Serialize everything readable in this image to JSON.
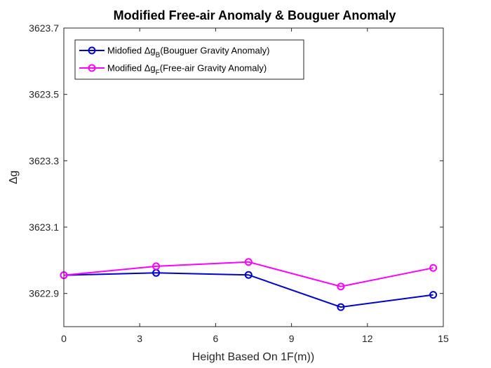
{
  "chart_data": {
    "type": "line",
    "title": "Modified Free-air Anomaly & Bouguer Anomaly",
    "xlabel": "Height Based On 1F(m))",
    "ylabel": "Δg",
    "xlim": [
      0,
      15
    ],
    "ylim": [
      3622.8,
      3623.7
    ],
    "xticks": [
      0,
      3,
      6,
      9,
      12,
      15
    ],
    "xtick_labels": [
      "0",
      "3",
      "6",
      "9",
      "12",
      "15"
    ],
    "yticks": [
      3622.9,
      3623.1,
      3623.3,
      3623.5,
      3623.7
    ],
    "ytick_labels": [
      "3622.9",
      "3623.1",
      "3623.3",
      "3623.5",
      "3623.7"
    ],
    "grid": false,
    "legend_position": "top-left",
    "series": [
      {
        "name": "Midofied Δg_B(Bouguer Gravity Anomaly)",
        "legend_prefix": "Midofied Δg",
        "legend_sub": "B",
        "legend_suffix": "(Bouguer Gravity Anomaly)",
        "color": "#0000cc",
        "x": [
          0,
          3.65,
          7.3,
          10.95,
          14.6
        ],
        "y": [
          3622.955,
          3622.962,
          3622.956,
          3622.859,
          3622.896
        ]
      },
      {
        "name": "Modified Δg_F(Free-air Gravity Anomaly)",
        "legend_prefix": "Modified Δg",
        "legend_sub": "F",
        "legend_suffix": "(Free-air Gravity Anomaly)",
        "color": "#ff00ff",
        "x": [
          0,
          3.65,
          7.3,
          10.95,
          14.6
        ],
        "y": [
          3622.955,
          3622.982,
          3622.995,
          3622.921,
          3622.977
        ]
      }
    ]
  }
}
